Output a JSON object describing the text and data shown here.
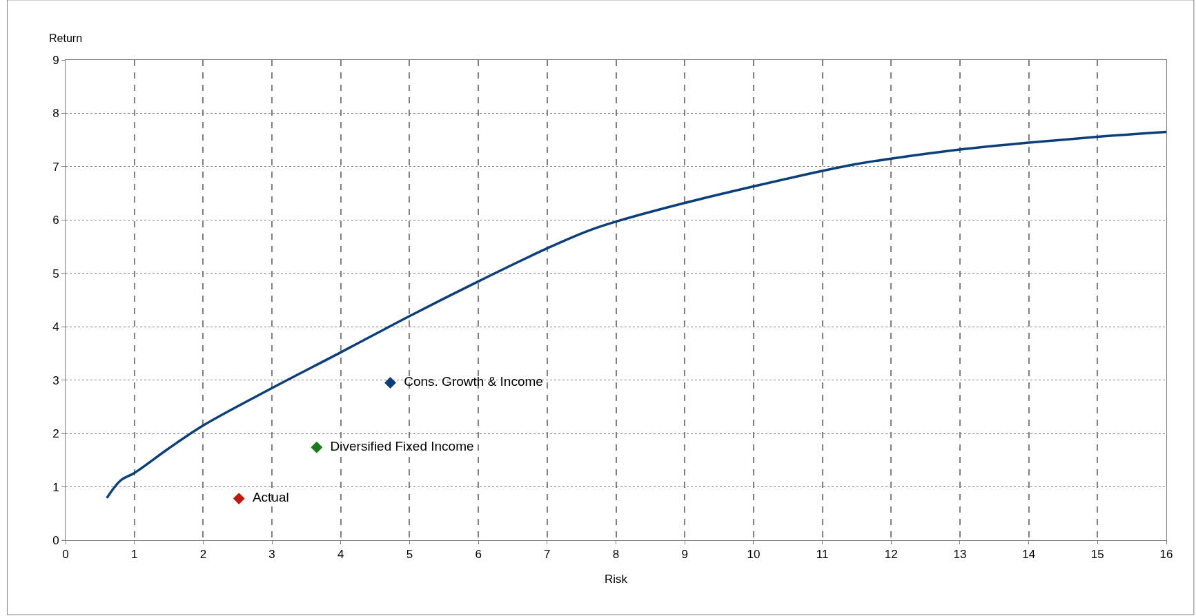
{
  "chart_data": {
    "type": "line",
    "xlabel": "Risk",
    "ylabel": "Return",
    "xlim": [
      0,
      16
    ],
    "ylim": [
      0,
      9
    ],
    "xticks": [
      0,
      1,
      2,
      3,
      4,
      5,
      6,
      7,
      8,
      9,
      10,
      11,
      12,
      13,
      14,
      15,
      16
    ],
    "yticks": [
      0,
      1,
      2,
      3,
      4,
      5,
      6,
      7,
      8,
      9
    ],
    "grid": true,
    "marker": "none",
    "series": [
      {
        "color": "#0b3f7a",
        "x": [
          0.6,
          0.8,
          1.0,
          1.5,
          2.0,
          3.0,
          4.0,
          5.0,
          6.0,
          7.0,
          7.6,
          8.0,
          9.0,
          10.0,
          11.0,
          11.5,
          12.0,
          13.0,
          14.0,
          15.0,
          16.0
        ],
        "values": [
          0.79,
          1.12,
          1.26,
          1.72,
          2.15,
          2.85,
          3.52,
          4.2,
          4.85,
          5.47,
          5.8,
          5.97,
          6.32,
          6.63,
          6.92,
          7.05,
          7.15,
          7.32,
          7.45,
          7.56,
          7.65
        ]
      },
      {
        "type": "scatter",
        "marker": "diamond",
        "name": "Actual",
        "color": "#c0180c",
        "x": [
          2.52
        ],
        "values": [
          0.78
        ]
      },
      {
        "type": "scatter",
        "marker": "diamond",
        "name": "Diversified Fixed Income",
        "color": "#1a7a1a",
        "x": [
          3.65
        ],
        "values": [
          1.74
        ]
      },
      {
        "type": "scatter",
        "marker": "diamond",
        "name": "Cons. Growth & Income",
        "color": "#0b3f7a",
        "x": [
          4.72
        ],
        "values": [
          2.95
        ]
      }
    ]
  }
}
